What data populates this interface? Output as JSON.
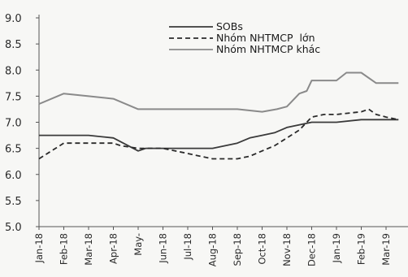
{
  "chart_data": {
    "type": "line",
    "title": "",
    "xlabel": "",
    "ylabel": "",
    "ylim": [
      5.0,
      9.0
    ],
    "yticks": [
      "5.0",
      "5.5",
      "6.0",
      "6.5",
      "7.0",
      "7.5",
      "8.0",
      "8.5",
      "9.0"
    ],
    "categories": [
      "Jan-18",
      "Feb-18",
      "Mar-18",
      "Apr-18",
      "May-18",
      "Jun-18",
      "Jul-18",
      "Aug-18",
      "Sep-18",
      "Oct-18",
      "Nov-18",
      "Dec-18",
      "Jan-19",
      "Feb-19",
      "Mar-19"
    ],
    "category_labels": [
      "Jan-18",
      "Feb-18",
      "Mar-18",
      "Apr-18",
      "May-",
      "Jun-18",
      "Jul-18",
      "Aug-18",
      "Sep-18",
      "Oct-18",
      "Nov-18",
      "Dec-18",
      "Jan-19",
      "Feb-19",
      "Mar-19"
    ],
    "grid": false,
    "legend_position": "top-right",
    "series": [
      {
        "name": "SOBs",
        "style": "solid",
        "color": "#3a3a3a",
        "x": [
          0,
          1,
          1.5,
          2,
          3,
          3.4,
          4,
          4.3,
          5,
          6,
          7,
          8,
          8.5,
          9,
          9.5,
          10,
          11,
          12,
          13,
          14,
          14.5
        ],
        "y": [
          6.75,
          6.75,
          6.75,
          6.75,
          6.7,
          6.6,
          6.45,
          6.5,
          6.5,
          6.5,
          6.5,
          6.6,
          6.7,
          6.75,
          6.8,
          6.9,
          7.0,
          7.0,
          7.05,
          7.05,
          7.05
        ]
      },
      {
        "name": "Nhóm NHTMCP  lớn",
        "style": "dashed",
        "color": "#2a2a2a",
        "x": [
          0,
          0.5,
          1,
          2,
          3,
          3.3,
          4,
          5,
          6,
          7,
          8,
          8.5,
          9,
          9.5,
          10,
          10.5,
          11,
          11.5,
          12,
          13,
          13.3,
          13.6,
          14,
          14.5
        ],
        "y": [
          6.3,
          6.45,
          6.6,
          6.6,
          6.6,
          6.55,
          6.5,
          6.5,
          6.4,
          6.3,
          6.3,
          6.35,
          6.45,
          6.55,
          6.7,
          6.85,
          7.1,
          7.15,
          7.15,
          7.2,
          7.25,
          7.15,
          7.1,
          7.05
        ]
      },
      {
        "name": "Nhóm NHTMCP khác",
        "style": "solid",
        "color": "#8a8a8a",
        "x": [
          0,
          1,
          2,
          3,
          4,
          5,
          6,
          7,
          8,
          9,
          9.6,
          10,
          10.5,
          10.8,
          11,
          12,
          12.4,
          13,
          13.6,
          14,
          14.5
        ],
        "y": [
          7.35,
          7.55,
          7.5,
          7.45,
          7.25,
          7.25,
          7.25,
          7.25,
          7.25,
          7.2,
          7.25,
          7.3,
          7.55,
          7.6,
          7.8,
          7.8,
          7.95,
          7.95,
          7.75,
          7.75,
          7.75
        ]
      }
    ]
  }
}
